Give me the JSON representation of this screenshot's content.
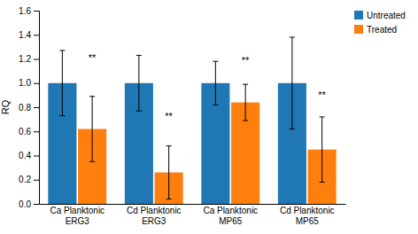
{
  "chart_data": {
    "type": "bar",
    "ylabel": "RQ",
    "categories": [
      "Ca Planktonic\nERG3",
      "Cd Planktonic\nERG3",
      "Ca Planktonic\nMP65",
      "Cd Planktonic\nMP65"
    ],
    "series": [
      {
        "name": "Untreated",
        "values": [
          1.0,
          1.0,
          1.0,
          1.0
        ],
        "errors": [
          0.27,
          0.23,
          0.18,
          0.38
        ]
      },
      {
        "name": "Treated",
        "values": [
          0.62,
          0.26,
          0.84,
          0.45
        ],
        "errors": [
          0.27,
          0.22,
          0.15,
          0.27
        ]
      }
    ],
    "ylim": [
      0,
      1.6
    ],
    "yticks": [
      {
        "value": 0,
        "label": "0.0"
      },
      0.2,
      0.4,
      0.6,
      0.8,
      {
        "value": 1,
        "label": "1.0"
      },
      1.2,
      1.4,
      1.6
    ],
    "annotations": [
      {
        "text": "**",
        "x": "Ca Planktonic\nERG3",
        "series": "Treated",
        "y": 1.18
      },
      {
        "text": "**",
        "x": "Cd Planktonic\nERG3",
        "series": "Treated",
        "y": 0.7
      },
      {
        "text": "**",
        "x": "Ca Planktonic\nMP65",
        "series": "Treated",
        "y": 1.16
      },
      {
        "text": "**",
        "x": "Cd Planktonic\nMP65",
        "series": "Treated",
        "y": 0.87
      }
    ],
    "legend": "upper right"
  }
}
